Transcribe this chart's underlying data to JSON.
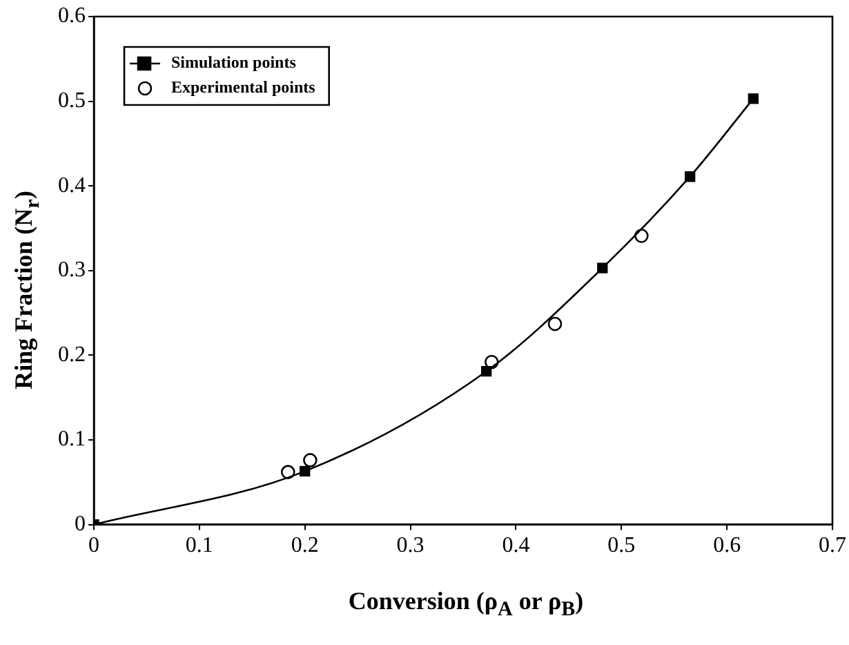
{
  "chart_data": {
    "type": "line",
    "xlabel": "Conversion (ρ$_{A}$ or ρ$_{B}$)",
    "ylabel": "Ring Fraction (N$_{r}$)",
    "xlim": [
      0,
      0.7
    ],
    "xticks": [
      0,
      0.1,
      0.2,
      0.3,
      0.4,
      0.5,
      0.6,
      0.7
    ],
    "ylim": [
      0,
      0.6
    ],
    "yticks": [
      0,
      0.1,
      0.2,
      0.3,
      0.4,
      0.5,
      0.6
    ],
    "grid": false,
    "legend": "top left",
    "series": [
      {
        "name": "Simulation points",
        "type": "line",
        "marker": "square",
        "color": "#000000",
        "x": [
          0,
          0.2,
          0.372,
          0.482,
          0.565,
          0.625
        ],
        "values": [
          0,
          0.063,
          0.181,
          0.303,
          0.411,
          0.503
        ]
      },
      {
        "name": "Experimental points",
        "type": "scatter",
        "marker": "circle",
        "color": "#000000",
        "x": [
          0.184,
          0.205,
          0.377,
          0.437,
          0.519
        ],
        "values": [
          0.062,
          0.076,
          0.192,
          0.237,
          0.341
        ]
      }
    ]
  }
}
